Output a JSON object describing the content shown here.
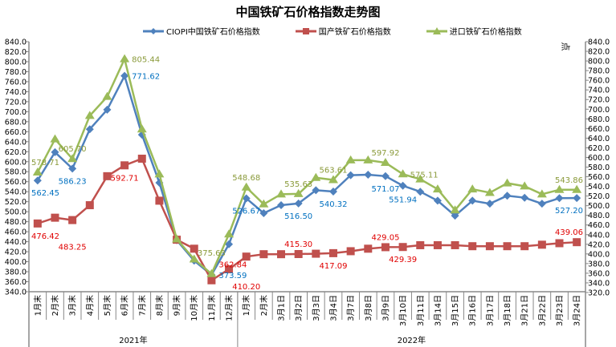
{
  "chart_data": {
    "type": "line",
    "title": "中国铁矿石价格指数走势图",
    "unit": "点",
    "categories": [
      "1月末",
      "2月末",
      "3月末",
      "4月末",
      "5月末",
      "6月末",
      "7月末",
      "8月末",
      "9月末",
      "10月末",
      "11月末",
      "12月末",
      "1月末",
      "2月末",
      "3月1日",
      "3月2日",
      "3月3日",
      "3月4日",
      "3月7日",
      "3月8日",
      "3月9日",
      "3月10日",
      "3月11日",
      "3月14日",
      "3月15日",
      "3月16日",
      "3月17日",
      "3月18日",
      "3月21日",
      "3月22日",
      "3月23日",
      "3月24日"
    ],
    "groups": [
      {
        "label": "2021年",
        "count": 12
      },
      {
        "label": "2022年",
        "count": 20
      }
    ],
    "y_left": {
      "min": 340,
      "max": 840,
      "step": 20,
      "decimals": 1
    },
    "y_right": {
      "min": 320,
      "max": 840,
      "step": 20,
      "decimals": 1
    },
    "series": [
      {
        "name": "CIOPI中国铁矿石价格指数",
        "color": "#4F81BD",
        "label_color": "#0070C0",
        "marker": "diamond",
        "values": [
          562.45,
          619,
          586.23,
          665,
          704,
          771.62,
          654,
          558,
          443,
          402,
          373.59,
          435,
          526.67,
          497,
          513,
          516.5,
          543,
          540.32,
          573,
          574,
          571.07,
          551.94,
          540,
          522,
          492,
          522,
          516,
          532,
          528,
          516,
          527,
          527.2
        ],
        "labels": [
          {
            "i": 0,
            "text": "562.45",
            "pos": "below"
          },
          {
            "i": 2,
            "text": "586.23",
            "pos": "below"
          },
          {
            "i": 5,
            "text": "771.62",
            "pos": "right"
          },
          {
            "i": 10,
            "text": "373.59",
            "pos": "right"
          },
          {
            "i": 12,
            "text": "526.67",
            "pos": "below"
          },
          {
            "i": 15,
            "text": "516.50",
            "pos": "below"
          },
          {
            "i": 17,
            "text": "540.32",
            "pos": "below"
          },
          {
            "i": 20,
            "text": "571.07",
            "pos": "below"
          },
          {
            "i": 21,
            "text": "551.94",
            "pos": "below"
          },
          {
            "i": 31,
            "text": "527.20",
            "pos": "below"
          }
        ]
      },
      {
        "name": "国产铁矿石价格指数",
        "color": "#C0504D",
        "label_color": "#E00000",
        "marker": "square",
        "values": [
          476.42,
          488,
          483.25,
          513,
          571,
          592.71,
          606,
          522,
          444,
          426,
          362.84,
          385,
          410.2,
          415,
          415,
          415.3,
          416,
          417.09,
          421,
          426,
          429.05,
          429.39,
          433,
          433,
          433,
          431,
          431,
          431,
          431,
          434,
          437,
          439.06
        ],
        "labels": [
          {
            "i": 0,
            "text": "476.42",
            "pos": "below"
          },
          {
            "i": 2,
            "text": "483.25",
            "pos": "below"
          },
          {
            "i": 5,
            "text": "592.71",
            "pos": "below"
          },
          {
            "i": 10,
            "text": "362.84",
            "pos": "right"
          },
          {
            "i": 12,
            "text": "410.20",
            "pos": "below"
          },
          {
            "i": 15,
            "text": "415.30",
            "pos": "above"
          },
          {
            "i": 17,
            "text": "417.09",
            "pos": "below"
          },
          {
            "i": 20,
            "text": "429.05",
            "pos": "above"
          },
          {
            "i": 21,
            "text": "429.39",
            "pos": "below"
          },
          {
            "i": 31,
            "text": "439.06",
            "pos": "above"
          }
        ]
      },
      {
        "name": "进口铁矿石价格指数",
        "color": "#9BBB59",
        "label_color": "#8A9A3A",
        "marker": "triangle",
        "values": [
          578.71,
          645,
          605.7,
          692,
          730,
          805.44,
          665,
          575,
          445,
          405,
          375.63,
          455,
          548.68,
          515,
          535,
          535.63,
          568,
          563.61,
          603,
          603,
          597.92,
          575.11,
          565,
          545,
          503,
          545,
          538,
          557,
          551,
          535,
          543.86,
          543.86
        ],
        "labels": [
          {
            "i": 0,
            "text": "578.71",
            "pos": "above"
          },
          {
            "i": 2,
            "text": "605.70",
            "pos": "above"
          },
          {
            "i": 5,
            "text": "805.44",
            "pos": "right"
          },
          {
            "i": 10,
            "text": "375.63",
            "pos": "above"
          },
          {
            "i": 12,
            "text": "548.68",
            "pos": "above"
          },
          {
            "i": 15,
            "text": "535.63",
            "pos": "above"
          },
          {
            "i": 17,
            "text": "563.61",
            "pos": "above"
          },
          {
            "i": 20,
            "text": "597.92",
            "pos": "above"
          },
          {
            "i": 21,
            "text": "575.11",
            "pos": "right"
          },
          {
            "i": 31,
            "text": "543.86",
            "pos": "above"
          }
        ]
      }
    ],
    "legend_position": "top"
  }
}
